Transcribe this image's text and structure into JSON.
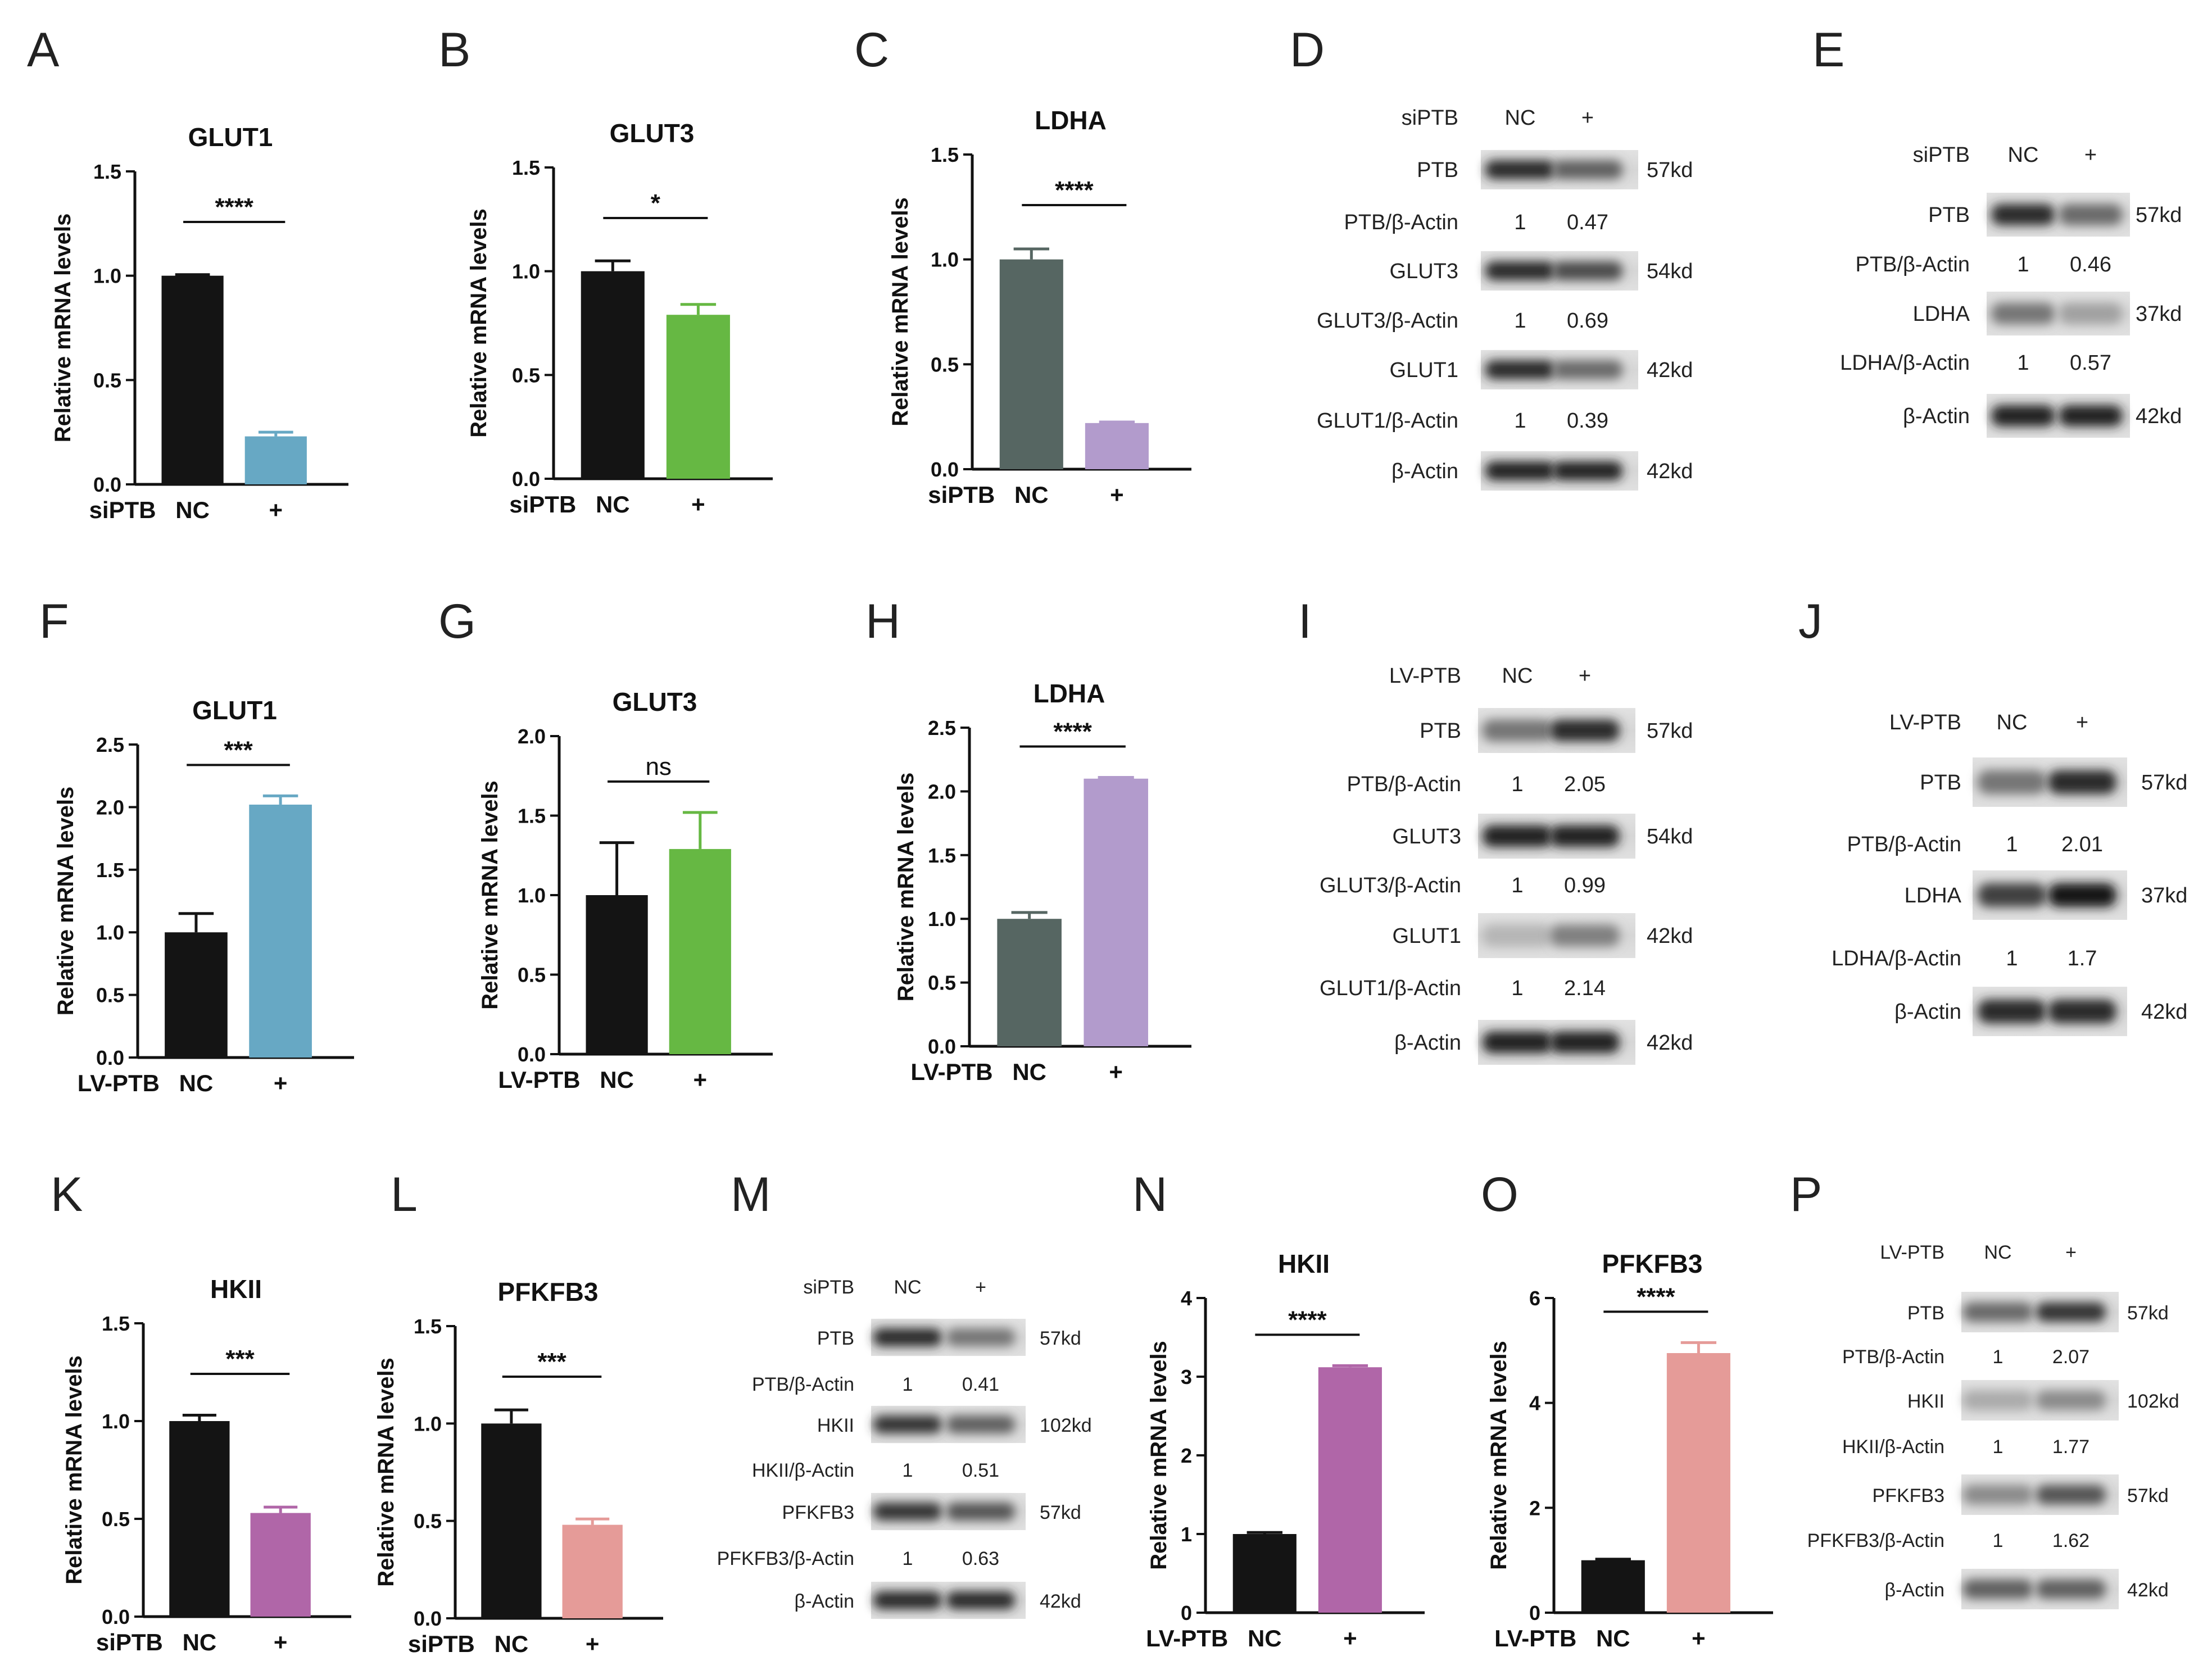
{
  "colors": {
    "black": "#141414",
    "blue": "#67a8c4",
    "green": "#66b843",
    "slate": "#566662",
    "lavender": "#b29bcc",
    "purple": "#b066a8",
    "salmon": "#e59b98"
  },
  "chart_data": [
    {
      "panel": "A",
      "type": "bar",
      "title": "GLUT1",
      "ylabel": "Relative mRNA levels",
      "xlabel": "siPTB",
      "categories": [
        "NC",
        "+"
      ],
      "values": [
        1.0,
        0.23
      ],
      "errors": [
        0.005,
        0.02
      ],
      "colors": [
        "#141414",
        "#67a8c4"
      ],
      "ylim": [
        0,
        1.5
      ],
      "yticks": [
        0.0,
        0.5,
        1.0,
        1.5
      ],
      "ytick_labels": [
        "0.0",
        "0.5",
        "1.0",
        "1.5"
      ],
      "significance": "****"
    },
    {
      "panel": "B",
      "type": "bar",
      "title": "GLUT3",
      "ylabel": "Relative mRNA levels",
      "xlabel": "siPTB",
      "categories": [
        "NC",
        "+"
      ],
      "values": [
        1.0,
        0.79
      ],
      "errors": [
        0.05,
        0.05
      ],
      "colors": [
        "#141414",
        "#66b843"
      ],
      "ylim": [
        0,
        1.5
      ],
      "yticks": [
        0.0,
        0.5,
        1.0,
        1.5
      ],
      "ytick_labels": [
        "0.0",
        "0.5",
        "1.0",
        "1.5"
      ],
      "significance": "*"
    },
    {
      "panel": "C",
      "type": "bar",
      "title": "LDHA",
      "ylabel": "Relative mRNA levels",
      "xlabel": "siPTB",
      "categories": [
        "NC",
        "+"
      ],
      "values": [
        1.0,
        0.22
      ],
      "errors": [
        0.05,
        0.005
      ],
      "colors": [
        "#566662",
        "#b29bcc"
      ],
      "ylim": [
        0,
        1.5
      ],
      "yticks": [
        0.0,
        0.5,
        1.0,
        1.5
      ],
      "ytick_labels": [
        "0.0",
        "0.5",
        "1.0",
        "1.5"
      ],
      "significance": "****"
    },
    {
      "panel": "F",
      "type": "bar",
      "title": "GLUT1",
      "ylabel": "Relative mRNA levels",
      "xlabel": "LV-PTB",
      "categories": [
        "NC",
        "+"
      ],
      "values": [
        1.0,
        2.02
      ],
      "errors": [
        0.15,
        0.07
      ],
      "colors": [
        "#141414",
        "#67a8c4"
      ],
      "ylim": [
        0,
        2.5
      ],
      "yticks": [
        0.0,
        0.5,
        1.0,
        1.5,
        2.0,
        2.5
      ],
      "ytick_labels": [
        "0.0",
        "0.5",
        "1.0",
        "1.5",
        "2.0",
        "2.5"
      ],
      "significance": "***"
    },
    {
      "panel": "G",
      "type": "bar",
      "title": "GLUT3",
      "ylabel": "Relative mRNA levels",
      "xlabel": "LV-PTB",
      "categories": [
        "NC",
        "+"
      ],
      "values": [
        1.0,
        1.29
      ],
      "errors": [
        0.33,
        0.23
      ],
      "colors": [
        "#141414",
        "#66b843"
      ],
      "ylim": [
        0,
        2.0
      ],
      "yticks": [
        0.0,
        0.5,
        1.0,
        1.5,
        2.0
      ],
      "ytick_labels": [
        "0.0",
        "0.5",
        "1.0",
        "1.5",
        "2.0"
      ],
      "significance": "ns"
    },
    {
      "panel": "H",
      "type": "bar",
      "title": "LDHA",
      "ylabel": "Relative mRNA levels",
      "xlabel": "LV-PTB",
      "categories": [
        "NC",
        "+"
      ],
      "values": [
        1.0,
        2.1
      ],
      "errors": [
        0.05,
        0.01
      ],
      "colors": [
        "#566662",
        "#b29bcc"
      ],
      "ylim": [
        0,
        2.5
      ],
      "yticks": [
        0.0,
        0.5,
        1.0,
        1.5,
        2.0,
        2.5
      ],
      "ytick_labels": [
        "0.0",
        "0.5",
        "1.0",
        "1.5",
        "2.0",
        "2.5"
      ],
      "significance": "****"
    },
    {
      "panel": "K",
      "type": "bar",
      "title": "HKII",
      "ylabel": "Relative mRNA levels",
      "xlabel": "siPTB",
      "categories": [
        "NC",
        "+"
      ],
      "values": [
        1.0,
        0.53
      ],
      "errors": [
        0.03,
        0.03
      ],
      "colors": [
        "#141414",
        "#b066a8"
      ],
      "ylim": [
        0,
        1.5
      ],
      "yticks": [
        0.0,
        0.5,
        1.0,
        1.5
      ],
      "ytick_labels": [
        "0.0",
        "0.5",
        "1.0",
        "1.5"
      ],
      "significance": "***"
    },
    {
      "panel": "L",
      "type": "bar",
      "title": "PFKFB3",
      "ylabel": "Relative mRNA levels",
      "xlabel": "siPTB",
      "categories": [
        "NC",
        "+"
      ],
      "values": [
        1.0,
        0.48
      ],
      "errors": [
        0.07,
        0.03
      ],
      "colors": [
        "#141414",
        "#e59b98"
      ],
      "ylim": [
        0,
        1.5
      ],
      "yticks": [
        0.0,
        0.5,
        1.0,
        1.5
      ],
      "ytick_labels": [
        "0.0",
        "0.5",
        "1.0",
        "1.5"
      ],
      "significance": "***"
    },
    {
      "panel": "N",
      "type": "bar",
      "title": "HKII",
      "ylabel": "Relative mRNA levels",
      "xlabel": "LV-PTB",
      "categories": [
        "NC",
        "+"
      ],
      "values": [
        1.0,
        3.12
      ],
      "errors": [
        0.02,
        0.02
      ],
      "colors": [
        "#141414",
        "#b066a8"
      ],
      "ylim": [
        0,
        4
      ],
      "yticks": [
        0,
        1,
        2,
        3,
        4
      ],
      "ytick_labels": [
        "0",
        "1",
        "2",
        "3",
        "4"
      ],
      "significance": "****"
    },
    {
      "panel": "O",
      "type": "bar",
      "title": "PFKFB3",
      "ylabel": "Relative mRNA levels",
      "xlabel": "LV-PTB",
      "categories": [
        "NC",
        "+"
      ],
      "values": [
        1.0,
        4.95
      ],
      "errors": [
        0.02,
        0.2
      ],
      "colors": [
        "#141414",
        "#e59b98"
      ],
      "ylim": [
        0,
        6
      ],
      "yticks": [
        0,
        2,
        4,
        6
      ],
      "ytick_labels": [
        "0",
        "2",
        "4",
        "6"
      ],
      "significance": "****"
    }
  ],
  "westerns": [
    {
      "panel": "D",
      "treatment": "siPTB",
      "lanes": [
        "NC",
        "+"
      ],
      "rows": [
        {
          "label": "PTB",
          "kd": "57kd",
          "band": [
            0.85,
            0.6
          ]
        },
        {
          "label": "PTB/β-Actin",
          "values": [
            "1",
            "0.47"
          ]
        },
        {
          "label": "GLUT3",
          "kd": "54kd",
          "band": [
            0.85,
            0.7
          ]
        },
        {
          "label": "GLUT3/β-Actin",
          "values": [
            "1",
            "0.69"
          ]
        },
        {
          "label": "GLUT1",
          "kd": "42kd",
          "band": [
            0.85,
            0.55
          ]
        },
        {
          "label": "GLUT1/β-Actin",
          "values": [
            "1",
            "0.39"
          ]
        },
        {
          "label": "β-Actin",
          "kd": "42kd",
          "band": [
            0.9,
            0.9
          ]
        }
      ]
    },
    {
      "panel": "E",
      "treatment": "siPTB",
      "lanes": [
        "NC",
        "+"
      ],
      "rows": [
        {
          "label": "PTB",
          "kd": "57kd",
          "band": [
            0.85,
            0.55
          ]
        },
        {
          "label": "PTB/β-Actin",
          "values": [
            "1",
            "0.46"
          ]
        },
        {
          "label": "LDHA",
          "kd": "37kd",
          "band": [
            0.5,
            0.3
          ]
        },
        {
          "label": "LDHA/β-Actin",
          "values": [
            "1",
            "0.57"
          ]
        },
        {
          "label": "β-Actin",
          "kd": "42kd",
          "band": [
            0.9,
            0.9
          ]
        }
      ]
    },
    {
      "panel": "I",
      "treatment": "LV-PTB",
      "lanes": [
        "NC",
        "+"
      ],
      "rows": [
        {
          "label": "PTB",
          "kd": "57kd",
          "band": [
            0.5,
            0.85
          ]
        },
        {
          "label": "PTB/β-Actin",
          "values": [
            "1",
            "2.05"
          ]
        },
        {
          "label": "GLUT3",
          "kd": "54kd",
          "band": [
            0.9,
            0.9
          ]
        },
        {
          "label": "GLUT3/β-Actin",
          "values": [
            "1",
            "0.99"
          ]
        },
        {
          "label": "GLUT1",
          "kd": "42kd",
          "band": [
            0.2,
            0.45
          ]
        },
        {
          "label": "GLUT1/β-Actin",
          "values": [
            "1",
            "2.14"
          ]
        },
        {
          "label": "β-Actin",
          "kd": "42kd",
          "band": [
            0.9,
            0.9
          ]
        }
      ]
    },
    {
      "panel": "J",
      "treatment": "LV-PTB",
      "lanes": [
        "NC",
        "+"
      ],
      "rows": [
        {
          "label": "PTB",
          "kd": "57kd",
          "band": [
            0.5,
            0.85
          ]
        },
        {
          "label": "PTB/β-Actin",
          "values": [
            "1",
            "2.01"
          ]
        },
        {
          "label": "LDHA",
          "kd": "37kd",
          "band": [
            0.75,
            0.95
          ]
        },
        {
          "label": "LDHA/β-Actin",
          "values": [
            "1",
            "1.7"
          ]
        },
        {
          "label": "β-Actin",
          "kd": "42kd",
          "band": [
            0.85,
            0.85
          ]
        }
      ]
    },
    {
      "panel": "M",
      "treatment": "siPTB",
      "lanes": [
        "NC",
        "+"
      ],
      "rows": [
        {
          "label": "PTB",
          "kd": "57kd",
          "band": [
            0.85,
            0.5
          ]
        },
        {
          "label": "PTB/β-Actin",
          "values": [
            "1",
            "0.41"
          ]
        },
        {
          "label": "HKII",
          "kd": "102kd",
          "band": [
            0.8,
            0.6
          ]
        },
        {
          "label": "HKII/β-Actin",
          "values": [
            "1",
            "0.51"
          ]
        },
        {
          "label": "PFKFB3",
          "kd": "57kd",
          "band": [
            0.8,
            0.65
          ]
        },
        {
          "label": "PFKFB3/β-Actin",
          "values": [
            "1",
            "0.63"
          ]
        },
        {
          "label": "β-Actin",
          "kd": "42kd",
          "band": [
            0.85,
            0.85
          ]
        }
      ]
    },
    {
      "panel": "P",
      "treatment": "LV-PTB",
      "lanes": [
        "NC",
        "+"
      ],
      "rows": [
        {
          "label": "PTB",
          "kd": "57kd",
          "band": [
            0.55,
            0.8
          ]
        },
        {
          "label": "PTB/β-Actin",
          "values": [
            "1",
            "2.07"
          ]
        },
        {
          "label": "HKII",
          "kd": "102kd",
          "band": [
            0.25,
            0.4
          ]
        },
        {
          "label": "HKII/β-Actin",
          "values": [
            "1",
            "1.77"
          ]
        },
        {
          "label": "PFKFB3",
          "kd": "57kd",
          "band": [
            0.4,
            0.65
          ]
        },
        {
          "label": "PFKFB3/β-Actin",
          "values": [
            "1",
            "1.62"
          ]
        },
        {
          "label": "β-Actin",
          "kd": "42kd",
          "band": [
            0.6,
            0.6
          ]
        }
      ]
    }
  ]
}
